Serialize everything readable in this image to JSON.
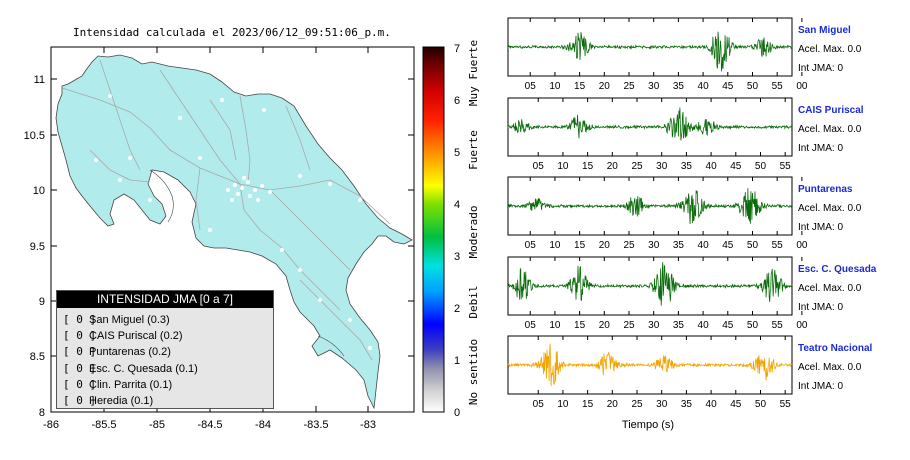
{
  "map": {
    "title": "Intensidad calculada el 2023/06/12_09:51:06_p.m.",
    "x_ticks": [
      "-86",
      "-85.5",
      "-85",
      "-84.5",
      "-84",
      "-83.5",
      "-83"
    ],
    "y_ticks": [
      "11",
      "10.5",
      "10",
      "9.5",
      "9",
      "8.5",
      "8"
    ],
    "land_color": "#b2ebec",
    "ocean_color": "#ffffff"
  },
  "legend": {
    "title": "INTENSIDAD JMA [0 a 7]",
    "items": [
      {
        "level": "[ 0 ]",
        "label": "San Miguel (0.3)"
      },
      {
        "level": "[ 0 ]",
        "label": "CAIS Puriscal (0.2)"
      },
      {
        "level": "[ 0 ]",
        "label": "Puntarenas (0.2)"
      },
      {
        "level": "[ 0 ]",
        "label": "Esc. C. Quesada (0.1)"
      },
      {
        "level": "[ 0 ]",
        "label": "Clin. Parrita (0.1)"
      },
      {
        "level": "[ 0 ]",
        "label": "Heredia (0.1)"
      }
    ]
  },
  "colorbar": {
    "ticks": [
      "0",
      "1",
      "2",
      "3",
      "4",
      "5",
      "6",
      "7"
    ],
    "categories": [
      "No sentido",
      "Debil",
      "Moderado",
      "Fuerte",
      "Muy Fuerte"
    ]
  },
  "seismograms": {
    "xlabel": "Tiempo (s)",
    "stations": [
      {
        "name": "San Miguel",
        "acel": "Acel. Max. 0.0",
        "jma": "Int JMA: 0",
        "color": "#0a6b0a",
        "ticks": [
          "05",
          "10",
          "15",
          "20",
          "25",
          "30",
          "35",
          "40",
          "45",
          "50",
          "55",
          "00"
        ]
      },
      {
        "name": "CAIS Puriscal",
        "acel": "Acel. Max. 0.0",
        "jma": "Int JMA: 0",
        "color": "#0a6b0a",
        "ticks": [
          "05",
          "10",
          "15",
          "20",
          "25",
          "30",
          "35",
          "40",
          "45",
          "50",
          "55"
        ]
      },
      {
        "name": "Puntarenas",
        "acel": "Acel. Max. 0.0",
        "jma": "Int JMA: 0",
        "color": "#0a6b0a",
        "ticks": [
          "05",
          "10",
          "15",
          "20",
          "25",
          "30",
          "35",
          "40",
          "45",
          "50",
          "55",
          "00"
        ]
      },
      {
        "name": "Esc. C. Quesada",
        "acel": "Acel. Max. 0.0",
        "jma": "Int JMA: 0",
        "color": "#0a6b0a",
        "ticks": [
          "05",
          "10",
          "15",
          "20",
          "25",
          "30",
          "35",
          "40",
          "45",
          "50",
          "55",
          "00"
        ]
      },
      {
        "name": "Teatro Nacional",
        "acel": "Acel. Max. 0.0",
        "jma": "Int JMA: 0",
        "color": "#f5a300",
        "ticks": [
          "05",
          "10",
          "15",
          "20",
          "25",
          "30",
          "35",
          "40",
          "45",
          "50",
          "55"
        ]
      }
    ]
  },
  "chart_data": [
    {
      "type": "scatter",
      "title": "Intensidad calculada el 2023/06/12_09:51:06_p.m.",
      "xlim": [
        -86,
        -82.6
      ],
      "ylim": [
        8,
        11.3
      ],
      "grid": false
    },
    {
      "type": "heatmap",
      "colorbar": true,
      "range": [
        0,
        7
      ],
      "ticks": [
        0,
        1,
        2,
        3,
        4,
        5,
        6,
        7
      ],
      "categories": [
        "No sentido",
        "Debil",
        "Moderado",
        "Fuerte",
        "Muy Fuerte"
      ]
    },
    {
      "type": "line",
      "xlabel": "Tiempo (s)",
      "series": [
        {
          "name": "San Miguel",
          "acel_max": 0.0,
          "int_jma": 0
        },
        {
          "name": "CAIS Puriscal",
          "acel_max": 0.0,
          "int_jma": 0
        },
        {
          "name": "Puntarenas",
          "acel_max": 0.0,
          "int_jma": 0
        },
        {
          "name": "Esc. C. Quesada",
          "acel_max": 0.0,
          "int_jma": 0
        },
        {
          "name": "Teatro Nacional",
          "acel_max": 0.0,
          "int_jma": 0
        }
      ]
    }
  ]
}
